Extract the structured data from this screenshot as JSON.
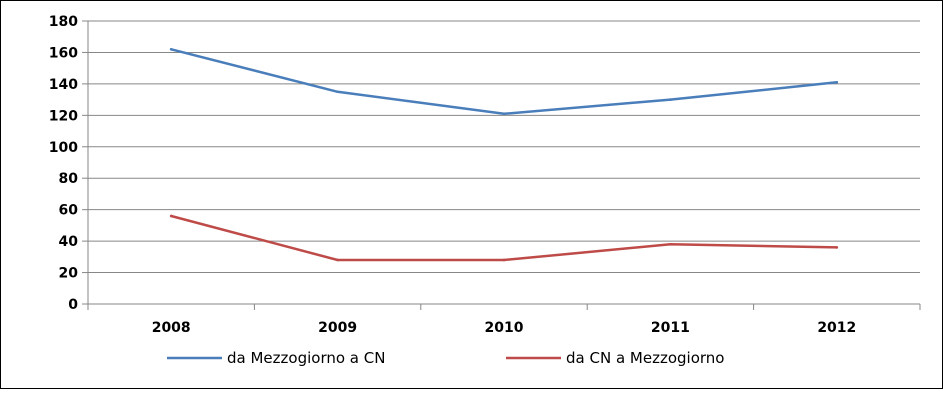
{
  "chart_data": {
    "type": "line",
    "categories": [
      "2008",
      "2009",
      "2010",
      "2011",
      "2012"
    ],
    "ylim": [
      0,
      180
    ],
    "yticks": [
      0,
      20,
      40,
      60,
      80,
      100,
      120,
      140,
      160,
      180
    ],
    "grid": true,
    "legend_position": "bottom",
    "series": [
      {
        "name": "da Mezzogiorno a CN",
        "color": "#4a7ebb",
        "values": [
          162,
          135,
          121,
          130,
          141
        ]
      },
      {
        "name": "da CN a Mezzogiorno",
        "color": "#be4b48",
        "values": [
          56,
          28,
          28,
          38,
          36
        ]
      }
    ]
  }
}
